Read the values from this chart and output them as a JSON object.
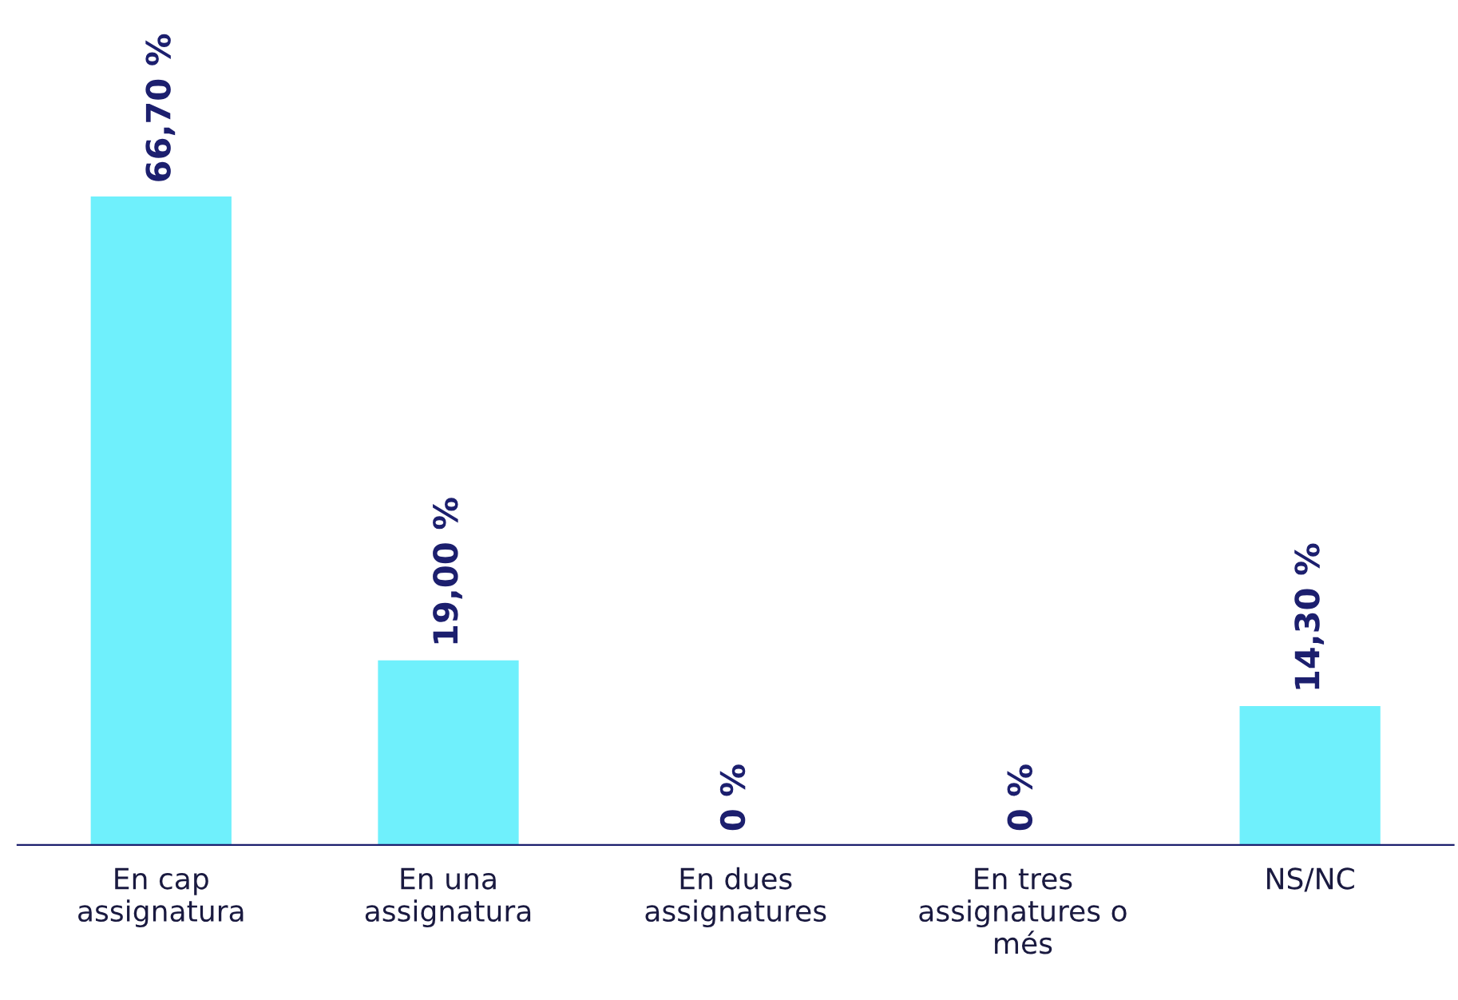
{
  "chart_data": {
    "type": "bar",
    "categories": [
      "En cap\nassignatura",
      "En una\nassignatura",
      "En dues\nassignatures",
      "En tres\nassignatures o\nmés",
      "NS/NC"
    ],
    "values": [
      66.7,
      19.0,
      0,
      0,
      14.3
    ],
    "value_labels": [
      "66,70 %",
      "19,00 %",
      "0 %",
      "0 %",
      "14,30 %"
    ],
    "color": "#6ff0fc",
    "grid": false,
    "legend": false
  }
}
